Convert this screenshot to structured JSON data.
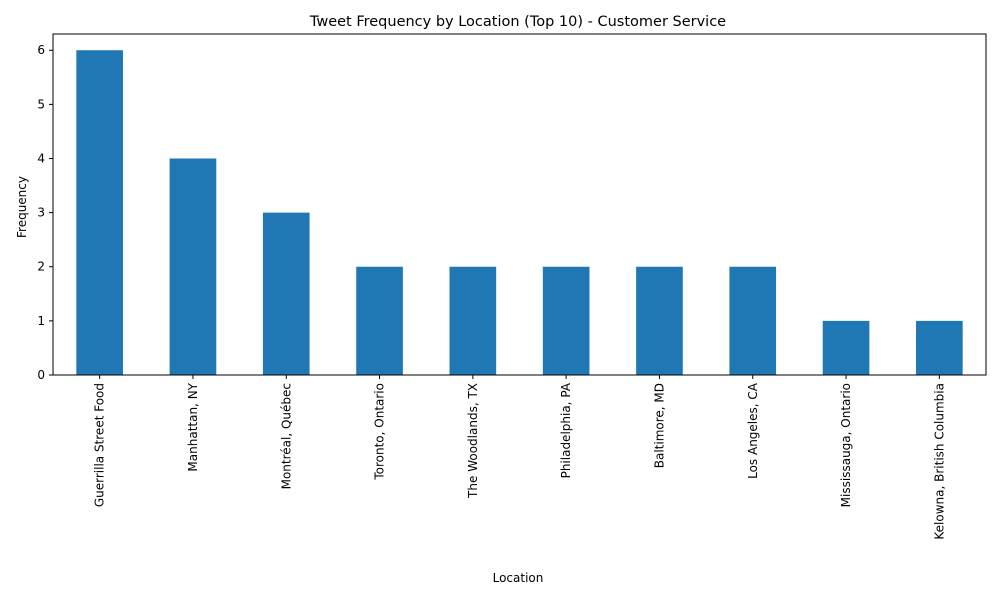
{
  "chart_data": {
    "type": "bar",
    "title": "Tweet Frequency by Location (Top 10) - Customer Service",
    "xlabel": "Location",
    "ylabel": "Frequency",
    "categories": [
      "Guerrilla Street Food",
      "Manhattan, NY",
      "Montréal, Québec",
      "Toronto, Ontario",
      "The Woodlands, TX",
      "Philadelphia, PA",
      "Baltimore, MD",
      "Los Angeles, CA",
      "Mississauga, Ontario",
      "Kelowna, British Columbia"
    ],
    "values": [
      6,
      4,
      3,
      2,
      2,
      2,
      2,
      2,
      1,
      1
    ],
    "ylim": [
      0,
      6.3
    ],
    "yticks": [
      0,
      1,
      2,
      3,
      4,
      5,
      6
    ],
    "grid": false,
    "legend": "none",
    "colors": {
      "bar": "#1f77b4",
      "axis": "#000000",
      "background": "#ffffff"
    }
  }
}
